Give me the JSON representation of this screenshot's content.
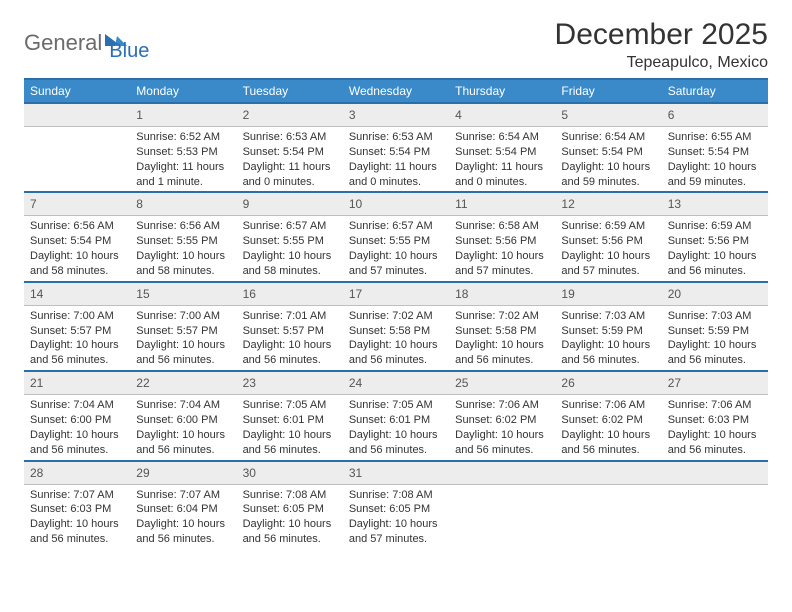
{
  "logo": {
    "part1": "General",
    "part2": "Blue"
  },
  "title": "December 2025",
  "location": "Tepeapulco, Mexico",
  "colors": {
    "header_bg": "#3a8ac9",
    "header_border": "#2b6fa8",
    "daynum_bg": "#ededed",
    "text": "#333333",
    "logo_gray": "#6b6b6b",
    "logo_blue": "#2b6fb3"
  },
  "weekdays": [
    "Sunday",
    "Monday",
    "Tuesday",
    "Wednesday",
    "Thursday",
    "Friday",
    "Saturday"
  ],
  "first_weekday_offset": 1,
  "days": [
    {
      "n": "1",
      "sunrise": "6:52 AM",
      "sunset": "5:53 PM",
      "daylight": "11 hours and 1 minute."
    },
    {
      "n": "2",
      "sunrise": "6:53 AM",
      "sunset": "5:54 PM",
      "daylight": "11 hours and 0 minutes."
    },
    {
      "n": "3",
      "sunrise": "6:53 AM",
      "sunset": "5:54 PM",
      "daylight": "11 hours and 0 minutes."
    },
    {
      "n": "4",
      "sunrise": "6:54 AM",
      "sunset": "5:54 PM",
      "daylight": "11 hours and 0 minutes."
    },
    {
      "n": "5",
      "sunrise": "6:54 AM",
      "sunset": "5:54 PM",
      "daylight": "10 hours and 59 minutes."
    },
    {
      "n": "6",
      "sunrise": "6:55 AM",
      "sunset": "5:54 PM",
      "daylight": "10 hours and 59 minutes."
    },
    {
      "n": "7",
      "sunrise": "6:56 AM",
      "sunset": "5:54 PM",
      "daylight": "10 hours and 58 minutes."
    },
    {
      "n": "8",
      "sunrise": "6:56 AM",
      "sunset": "5:55 PM",
      "daylight": "10 hours and 58 minutes."
    },
    {
      "n": "9",
      "sunrise": "6:57 AM",
      "sunset": "5:55 PM",
      "daylight": "10 hours and 58 minutes."
    },
    {
      "n": "10",
      "sunrise": "6:57 AM",
      "sunset": "5:55 PM",
      "daylight": "10 hours and 57 minutes."
    },
    {
      "n": "11",
      "sunrise": "6:58 AM",
      "sunset": "5:56 PM",
      "daylight": "10 hours and 57 minutes."
    },
    {
      "n": "12",
      "sunrise": "6:59 AM",
      "sunset": "5:56 PM",
      "daylight": "10 hours and 57 minutes."
    },
    {
      "n": "13",
      "sunrise": "6:59 AM",
      "sunset": "5:56 PM",
      "daylight": "10 hours and 56 minutes."
    },
    {
      "n": "14",
      "sunrise": "7:00 AM",
      "sunset": "5:57 PM",
      "daylight": "10 hours and 56 minutes."
    },
    {
      "n": "15",
      "sunrise": "7:00 AM",
      "sunset": "5:57 PM",
      "daylight": "10 hours and 56 minutes."
    },
    {
      "n": "16",
      "sunrise": "7:01 AM",
      "sunset": "5:57 PM",
      "daylight": "10 hours and 56 minutes."
    },
    {
      "n": "17",
      "sunrise": "7:02 AM",
      "sunset": "5:58 PM",
      "daylight": "10 hours and 56 minutes."
    },
    {
      "n": "18",
      "sunrise": "7:02 AM",
      "sunset": "5:58 PM",
      "daylight": "10 hours and 56 minutes."
    },
    {
      "n": "19",
      "sunrise": "7:03 AM",
      "sunset": "5:59 PM",
      "daylight": "10 hours and 56 minutes."
    },
    {
      "n": "20",
      "sunrise": "7:03 AM",
      "sunset": "5:59 PM",
      "daylight": "10 hours and 56 minutes."
    },
    {
      "n": "21",
      "sunrise": "7:04 AM",
      "sunset": "6:00 PM",
      "daylight": "10 hours and 56 minutes."
    },
    {
      "n": "22",
      "sunrise": "7:04 AM",
      "sunset": "6:00 PM",
      "daylight": "10 hours and 56 minutes."
    },
    {
      "n": "23",
      "sunrise": "7:05 AM",
      "sunset": "6:01 PM",
      "daylight": "10 hours and 56 minutes."
    },
    {
      "n": "24",
      "sunrise": "7:05 AM",
      "sunset": "6:01 PM",
      "daylight": "10 hours and 56 minutes."
    },
    {
      "n": "25",
      "sunrise": "7:06 AM",
      "sunset": "6:02 PM",
      "daylight": "10 hours and 56 minutes."
    },
    {
      "n": "26",
      "sunrise": "7:06 AM",
      "sunset": "6:02 PM",
      "daylight": "10 hours and 56 minutes."
    },
    {
      "n": "27",
      "sunrise": "7:06 AM",
      "sunset": "6:03 PM",
      "daylight": "10 hours and 56 minutes."
    },
    {
      "n": "28",
      "sunrise": "7:07 AM",
      "sunset": "6:03 PM",
      "daylight": "10 hours and 56 minutes."
    },
    {
      "n": "29",
      "sunrise": "7:07 AM",
      "sunset": "6:04 PM",
      "daylight": "10 hours and 56 minutes."
    },
    {
      "n": "30",
      "sunrise": "7:08 AM",
      "sunset": "6:05 PM",
      "daylight": "10 hours and 56 minutes."
    },
    {
      "n": "31",
      "sunrise": "7:08 AM",
      "sunset": "6:05 PM",
      "daylight": "10 hours and 57 minutes."
    }
  ],
  "labels": {
    "sunrise": "Sunrise:",
    "sunset": "Sunset:",
    "daylight": "Daylight:"
  }
}
